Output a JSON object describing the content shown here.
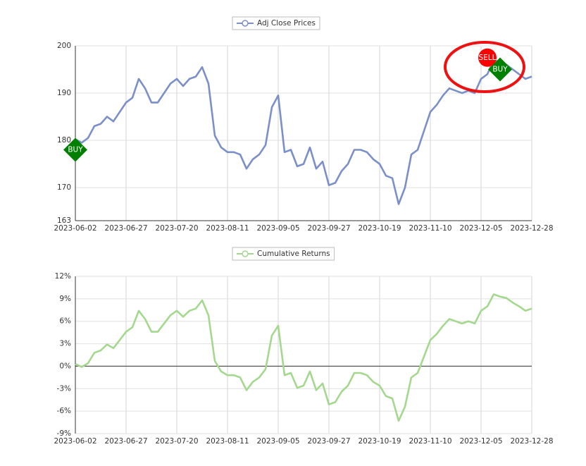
{
  "chart_data": [
    {
      "type": "line",
      "categories": [
        "2023-06-02",
        null,
        null,
        null,
        null,
        null,
        null,
        null,
        "2023-06-27",
        null,
        null,
        null,
        null,
        null,
        null,
        null,
        "2023-07-20",
        null,
        null,
        null,
        null,
        null,
        null,
        null,
        "2023-08-11",
        null,
        null,
        null,
        null,
        null,
        null,
        null,
        "2023-09-05",
        null,
        null,
        null,
        null,
        null,
        null,
        null,
        "2023-09-27",
        null,
        null,
        null,
        null,
        null,
        null,
        null,
        "2023-10-19",
        null,
        null,
        null,
        null,
        null,
        null,
        null,
        "2023-11-10",
        null,
        null,
        null,
        null,
        null,
        null,
        null,
        "2023-12-05",
        null,
        null,
        null,
        null,
        null,
        null,
        null,
        "2023-12-28"
      ],
      "series": [
        {
          "name": "Adj Close Prices",
          "color": "#7b8fc9",
          "values": [
            180.2,
            179.5,
            180.5,
            183,
            183.5,
            185,
            184,
            186,
            188,
            189,
            193,
            191,
            188,
            188,
            190,
            192,
            193,
            191.5,
            193,
            193.5,
            195.5,
            192,
            181,
            178.5,
            177.5,
            177.5,
            177,
            174,
            176,
            177,
            179,
            187,
            189.5,
            177.5,
            178,
            174.5,
            175,
            178.5,
            174,
            175.5,
            170.5,
            171,
            173.5,
            175,
            178,
            178,
            177.5,
            176,
            175,
            172.5,
            172,
            166.5,
            170,
            177,
            178,
            182,
            186,
            187.5,
            189.5,
            191,
            190.5,
            190,
            190.5,
            190,
            193,
            194,
            197,
            196.5,
            196,
            195,
            194,
            193,
            193.5
          ]
        }
      ],
      "ylim": [
        163,
        200
      ],
      "yticks": [
        163,
        170,
        180,
        190,
        200
      ],
      "grid": true,
      "annotations": [
        {
          "text": "BUY",
          "x": 0,
          "y": 178,
          "color": "#008000"
        },
        {
          "text": "SELL",
          "x": 65,
          "y": 197.5,
          "color": "#ff0000"
        },
        {
          "text": "BUY",
          "x": 67,
          "y": 195,
          "color": "#008000"
        }
      ]
    },
    {
      "type": "line",
      "categories": [
        "2023-06-02",
        null,
        null,
        null,
        null,
        null,
        null,
        null,
        "2023-06-27",
        null,
        null,
        null,
        null,
        null,
        null,
        null,
        "2023-07-20",
        null,
        null,
        null,
        null,
        null,
        null,
        null,
        "2023-08-11",
        null,
        null,
        null,
        null,
        null,
        null,
        null,
        "2023-09-05",
        null,
        null,
        null,
        null,
        null,
        null,
        null,
        "2023-09-27",
        null,
        null,
        null,
        null,
        null,
        null,
        null,
        "2023-10-19",
        null,
        null,
        null,
        null,
        null,
        null,
        null,
        "2023-11-10",
        null,
        null,
        null,
        null,
        null,
        null,
        null,
        "2023-12-05",
        null,
        null,
        null,
        null,
        null,
        null,
        null,
        "2023-12-28"
      ],
      "series": [
        {
          "name": "Cumulative Returns",
          "color": "#a5d88f",
          "values": [
            0.3,
            -0.1,
            0.4,
            1.8,
            2.1,
            2.9,
            2.4,
            3.5,
            4.6,
            5.2,
            7.4,
            6.3,
            4.6,
            4.6,
            5.7,
            6.8,
            7.4,
            6.6,
            7.4,
            7.7,
            8.8,
            6.8,
            0.7,
            -0.7,
            -1.2,
            -1.2,
            -1.5,
            -3.2,
            -2.1,
            -1.5,
            -0.4,
            4.1,
            5.4,
            -1.2,
            -0.9,
            -2.9,
            -2.6,
            -0.7,
            -3.2,
            -2.3,
            -5.1,
            -4.8,
            -3.4,
            -2.6,
            -0.9,
            -0.9,
            -1.2,
            -2.1,
            -2.6,
            -4.0,
            -4.3,
            -7.3,
            -5.4,
            -1.5,
            -0.9,
            1.3,
            3.5,
            4.3,
            5.4,
            6.3,
            6.0,
            5.7,
            6.0,
            5.7,
            7.4,
            8.0,
            9.6,
            9.3,
            9.1,
            8.5,
            8.0,
            7.4,
            7.7
          ]
        }
      ],
      "ylim": [
        -9,
        12
      ],
      "yticks": [
        {
          "value": -9,
          "label": "-9%"
        },
        {
          "value": -6,
          "label": "-6%"
        },
        {
          "value": -3,
          "label": "-3%"
        },
        {
          "value": 0,
          "label": "0%"
        },
        {
          "value": 3,
          "label": "3%"
        },
        {
          "value": 6,
          "label": "6%"
        },
        {
          "value": 9,
          "label": "9%"
        },
        {
          "value": 12,
          "label": "12%"
        }
      ],
      "grid": true
    }
  ]
}
